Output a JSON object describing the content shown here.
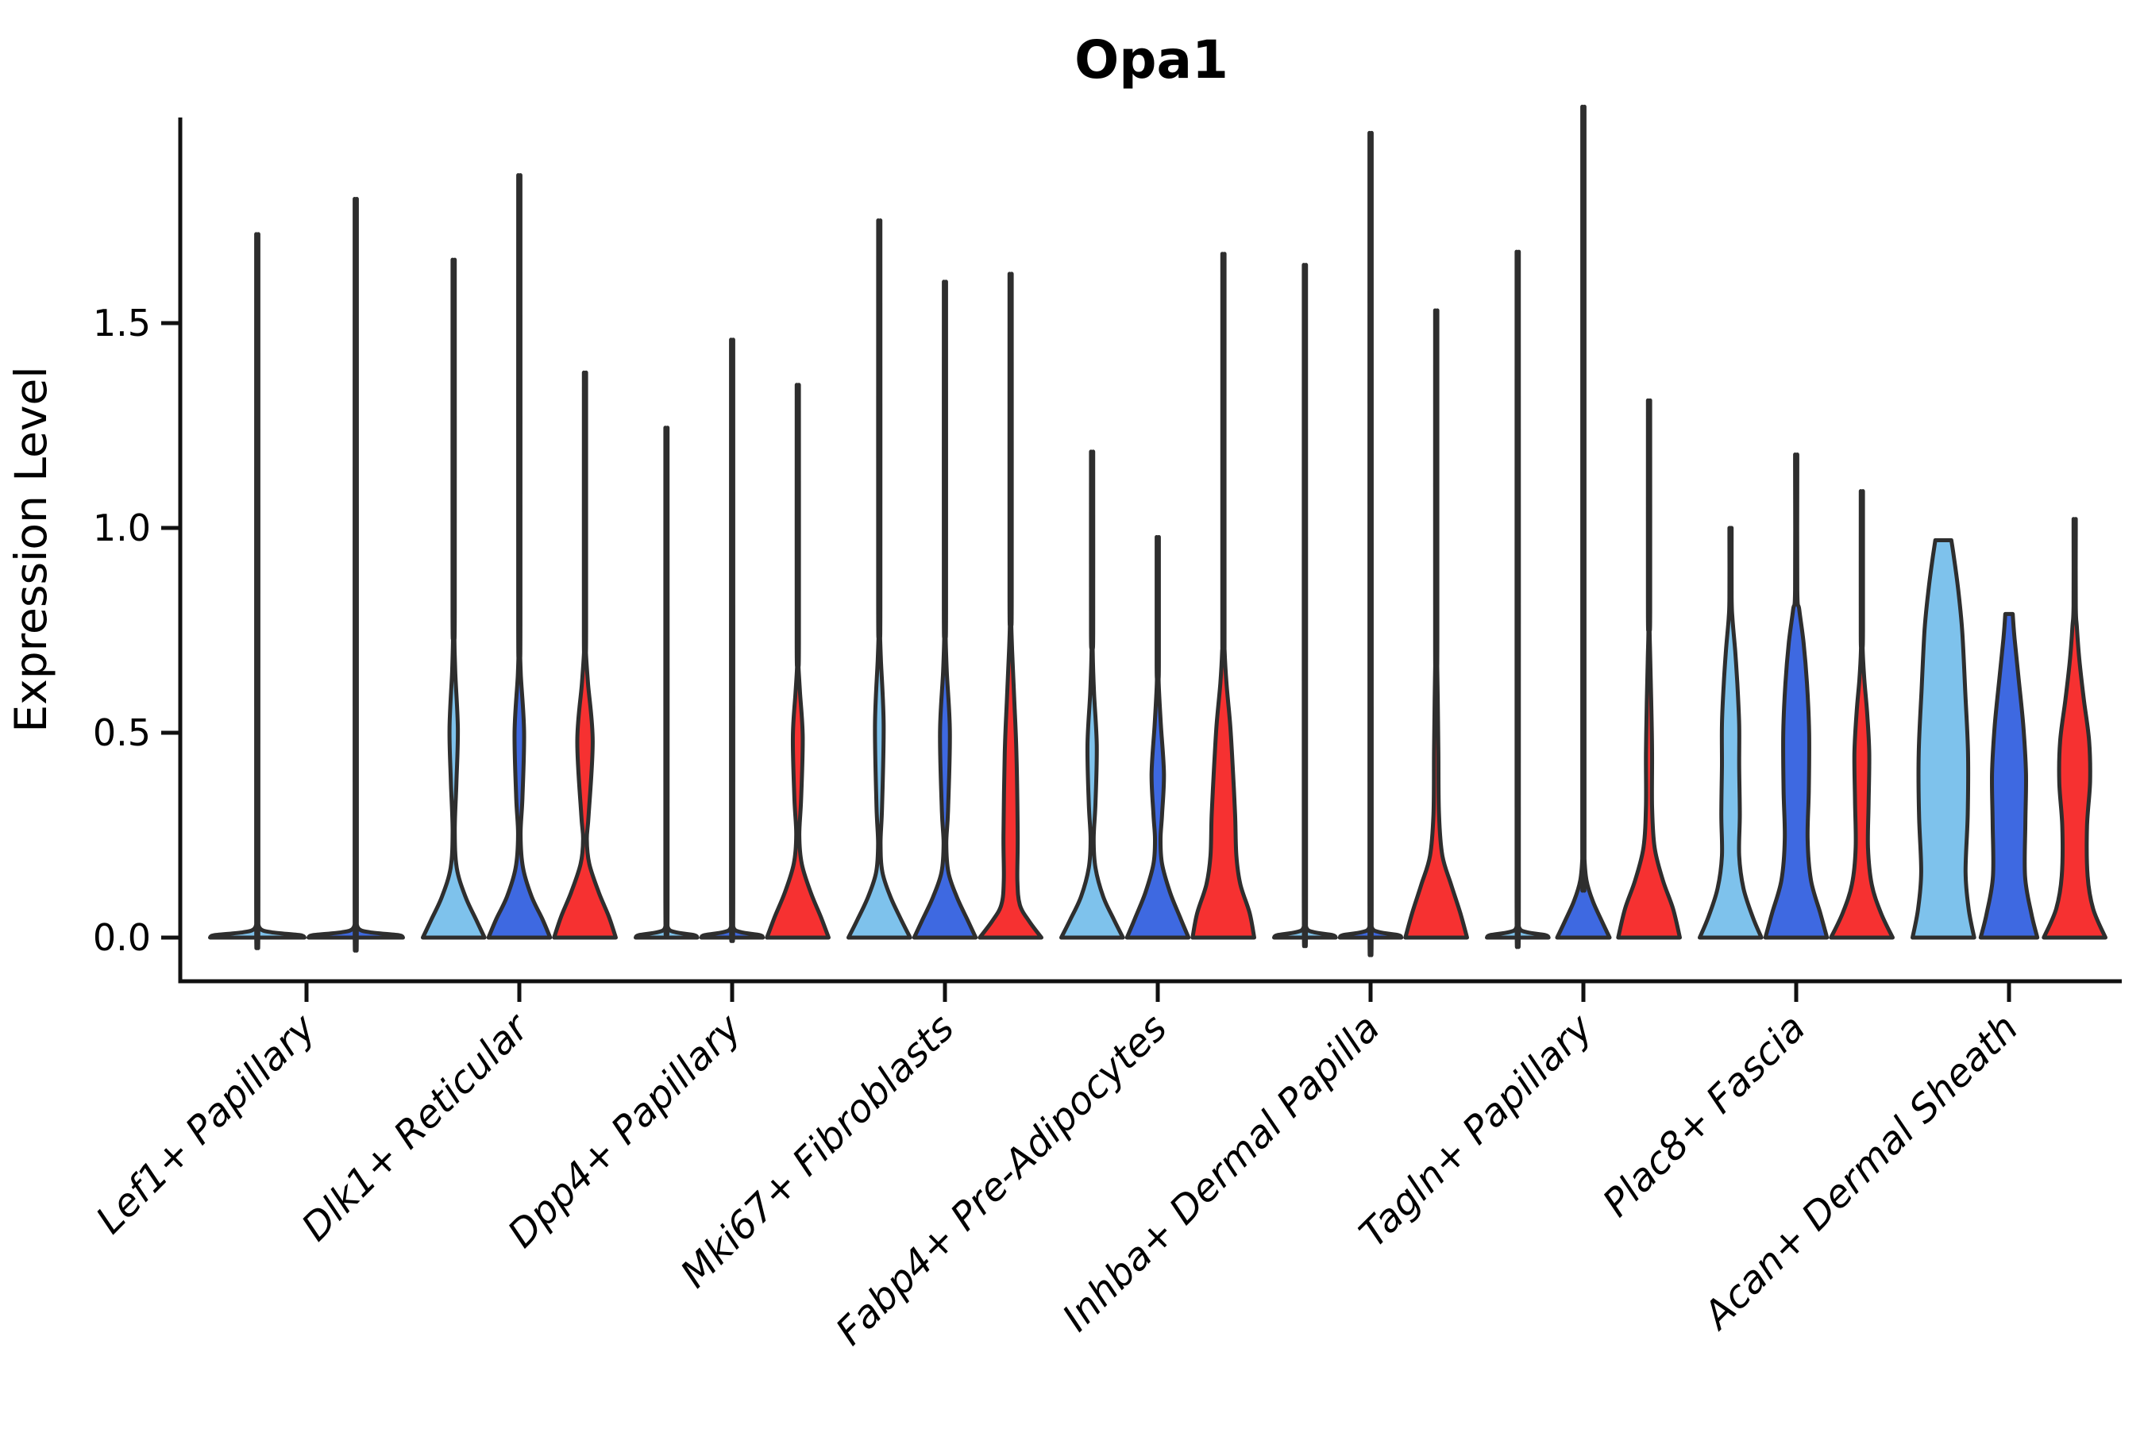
{
  "page": {
    "background": "#ffffff"
  },
  "chart_data": {
    "type": "violin",
    "title": "Opa1",
    "ylabel": "Expression Level",
    "xlabel": "",
    "yticks": [
      "0.0",
      "0.5",
      "1.0",
      "1.5"
    ],
    "ytick_values": [
      0,
      0.5,
      1.0,
      1.5
    ],
    "ylim": [
      0,
      2.0
    ],
    "grid": false,
    "legend": "none",
    "categories": [
      "Lef1+ Papillary",
      "Dlk1+ Reticular",
      "Dpp4+ Papillary",
      "Mki67+ Fibroblasts",
      "Fabp4+ Pre-Adipocytes",
      "Inhba+ Dermal Papilla",
      "Tagln+ Papillary",
      "Plac8+ Fascia",
      "Acan+ Dermal Sheath"
    ],
    "palette": {
      "lightblue": "#7EC2EC",
      "darkblue": "#3E69E1",
      "red": "#F63131",
      "outline": "#2E2E2E",
      "axis": "#111111",
      "text": "#000000"
    },
    "series_order": [
      "lightblue",
      "darkblue",
      "red"
    ],
    "violins": [
      {
        "category": "Lef1+ Papillary",
        "cat": 0,
        "slots": 2,
        "slot": 0,
        "color": "lightblue",
        "shape": "flat-spike",
        "peak": 1.62,
        "profile": [
          [
            0,
            1
          ],
          [
            0.006,
            0.9
          ],
          [
            0.013,
            0.3
          ],
          [
            0.022,
            0.06
          ],
          [
            0.05,
            0.015
          ]
        ]
      },
      {
        "category": "Lef1+ Papillary",
        "cat": 0,
        "slots": 2,
        "slot": 1,
        "color": "darkblue",
        "shape": "flat-spike",
        "peak": 1.7,
        "profile": [
          [
            0,
            1
          ],
          [
            0.006,
            0.9
          ],
          [
            0.013,
            0.3
          ],
          [
            0.022,
            0.06
          ],
          [
            0.05,
            0.015
          ]
        ]
      },
      {
        "category": "Dlk1+ Reticular",
        "cat": 1,
        "slots": 3,
        "slot": 0,
        "color": "lightblue",
        "shape": "mound-bulge-spike",
        "peak": 1.61,
        "profile": [
          [
            0,
            1
          ],
          [
            0.045,
            0.72
          ],
          [
            0.1,
            0.38
          ],
          [
            0.17,
            0.1
          ],
          [
            0.26,
            0.035
          ],
          [
            0.38,
            0.09
          ],
          [
            0.51,
            0.135
          ],
          [
            0.65,
            0.05
          ],
          [
            0.75,
            0.02
          ]
        ]
      },
      {
        "category": "Dlk1+ Reticular",
        "cat": 1,
        "slots": 3,
        "slot": 1,
        "color": "darkblue",
        "shape": "mound-bulge-spike",
        "peak": 1.8,
        "profile": [
          [
            0,
            1
          ],
          [
            0.045,
            0.75
          ],
          [
            0.1,
            0.4
          ],
          [
            0.17,
            0.12
          ],
          [
            0.25,
            0.04
          ],
          [
            0.34,
            0.1
          ],
          [
            0.5,
            0.155
          ],
          [
            0.64,
            0.05
          ],
          [
            0.72,
            0.02
          ]
        ]
      },
      {
        "category": "Dlk1+ Reticular",
        "cat": 1,
        "slots": 3,
        "slot": 2,
        "color": "red",
        "shape": "mound-bulge-spike",
        "peak": 1.35,
        "profile": [
          [
            0,
            1
          ],
          [
            0.05,
            0.78
          ],
          [
            0.11,
            0.45
          ],
          [
            0.18,
            0.14
          ],
          [
            0.24,
            0.06
          ],
          [
            0.3,
            0.12
          ],
          [
            0.48,
            0.25
          ],
          [
            0.62,
            0.1
          ],
          [
            0.7,
            0.03
          ]
        ]
      },
      {
        "category": "Dpp4+ Papillary",
        "cat": 2,
        "slots": 3,
        "slot": 0,
        "color": "lightblue",
        "shape": "flat-spike",
        "peak": 1.18,
        "profile": [
          [
            0,
            1
          ],
          [
            0.006,
            0.9
          ],
          [
            0.013,
            0.3
          ],
          [
            0.022,
            0.06
          ],
          [
            0.05,
            0.015
          ]
        ]
      },
      {
        "category": "Dpp4+ Papillary",
        "cat": 2,
        "slots": 3,
        "slot": 1,
        "color": "darkblue",
        "shape": "flat-spike",
        "peak": 1.38,
        "profile": [
          [
            0,
            1
          ],
          [
            0.006,
            0.9
          ],
          [
            0.013,
            0.3
          ],
          [
            0.022,
            0.06
          ],
          [
            0.05,
            0.015
          ]
        ]
      },
      {
        "category": "Dpp4+ Papillary",
        "cat": 2,
        "slots": 3,
        "slot": 2,
        "color": "red",
        "shape": "mound-bulge-spike",
        "peak": 1.32,
        "profile": [
          [
            0,
            1
          ],
          [
            0.05,
            0.75
          ],
          [
            0.11,
            0.42
          ],
          [
            0.18,
            0.13
          ],
          [
            0.25,
            0.05
          ],
          [
            0.34,
            0.11
          ],
          [
            0.49,
            0.16
          ],
          [
            0.6,
            0.07
          ],
          [
            0.67,
            0.02
          ]
        ]
      },
      {
        "category": "Mki67+ Fibroblasts",
        "cat": 3,
        "slots": 3,
        "slot": 0,
        "color": "lightblue",
        "shape": "mound-bulge-spike",
        "peak": 1.7,
        "profile": [
          [
            0,
            1
          ],
          [
            0.045,
            0.7
          ],
          [
            0.1,
            0.36
          ],
          [
            0.16,
            0.1
          ],
          [
            0.23,
            0.04
          ],
          [
            0.32,
            0.09
          ],
          [
            0.52,
            0.14
          ],
          [
            0.68,
            0.05
          ],
          [
            0.76,
            0.02
          ]
        ]
      },
      {
        "category": "Mki67+ Fibroblasts",
        "cat": 3,
        "slots": 3,
        "slot": 1,
        "color": "darkblue",
        "shape": "mound-bulge-spike",
        "peak": 1.56,
        "profile": [
          [
            0,
            1
          ],
          [
            0.045,
            0.72
          ],
          [
            0.1,
            0.38
          ],
          [
            0.16,
            0.11
          ],
          [
            0.23,
            0.045
          ],
          [
            0.31,
            0.1
          ],
          [
            0.5,
            0.16
          ],
          [
            0.65,
            0.06
          ],
          [
            0.75,
            0.02
          ]
        ]
      },
      {
        "category": "Mki67+ Fibroblasts",
        "cat": 3,
        "slots": 3,
        "slot": 2,
        "color": "red",
        "shape": "trumpet-spike",
        "peak": 1.58,
        "profile": [
          [
            0,
            1
          ],
          [
            0.04,
            0.6
          ],
          [
            0.08,
            0.3
          ],
          [
            0.14,
            0.22
          ],
          [
            0.25,
            0.23
          ],
          [
            0.45,
            0.19
          ],
          [
            0.58,
            0.12
          ],
          [
            0.7,
            0.05
          ],
          [
            0.78,
            0.02
          ]
        ]
      },
      {
        "category": "Fabp4+ Pre-Adipocytes",
        "cat": 4,
        "slots": 3,
        "slot": 0,
        "color": "lightblue",
        "shape": "mound-bulge-spike",
        "peak": 1.17,
        "profile": [
          [
            0,
            1
          ],
          [
            0.045,
            0.7
          ],
          [
            0.1,
            0.36
          ],
          [
            0.17,
            0.11
          ],
          [
            0.24,
            0.05
          ],
          [
            0.33,
            0.11
          ],
          [
            0.47,
            0.15
          ],
          [
            0.6,
            0.06
          ],
          [
            0.7,
            0.02
          ]
        ]
      },
      {
        "category": "Fabp4+ Pre-Adipocytes",
        "cat": 4,
        "slots": 3,
        "slot": 1,
        "color": "darkblue",
        "shape": "mound-bulge-spike",
        "peak": 0.97,
        "profile": [
          [
            0,
            1
          ],
          [
            0.05,
            0.72
          ],
          [
            0.11,
            0.4
          ],
          [
            0.18,
            0.14
          ],
          [
            0.24,
            0.09
          ],
          [
            0.3,
            0.14
          ],
          [
            0.4,
            0.2
          ],
          [
            0.52,
            0.1
          ],
          [
            0.62,
            0.03
          ]
        ]
      },
      {
        "category": "Fabp4+ Pre-Adipocytes",
        "cat": 4,
        "slots": 3,
        "slot": 2,
        "color": "red",
        "shape": "wide-trumpet-spike",
        "peak": 1.62,
        "profile": [
          [
            0,
            1
          ],
          [
            0.06,
            0.85
          ],
          [
            0.13,
            0.55
          ],
          [
            0.2,
            0.42
          ],
          [
            0.3,
            0.38
          ],
          [
            0.42,
            0.3
          ],
          [
            0.52,
            0.22
          ],
          [
            0.62,
            0.1
          ],
          [
            0.7,
            0.04
          ]
        ]
      },
      {
        "category": "Inhba+ Dermal Papilla",
        "cat": 5,
        "slots": 3,
        "slot": 0,
        "color": "lightblue",
        "shape": "flat-spike",
        "peak": 1.55,
        "profile": [
          [
            0,
            1
          ],
          [
            0.006,
            0.9
          ],
          [
            0.013,
            0.3
          ],
          [
            0.022,
            0.06
          ],
          [
            0.05,
            0.015
          ]
        ]
      },
      {
        "category": "Inhba+ Dermal Papilla",
        "cat": 5,
        "slots": 3,
        "slot": 1,
        "color": "darkblue",
        "shape": "flat-spike",
        "peak": 1.85,
        "profile": [
          [
            0,
            1
          ],
          [
            0.006,
            0.9
          ],
          [
            0.013,
            0.3
          ],
          [
            0.022,
            0.06
          ],
          [
            0.05,
            0.015
          ]
        ]
      },
      {
        "category": "Inhba+ Dermal Papilla",
        "cat": 5,
        "slots": 3,
        "slot": 2,
        "color": "red",
        "shape": "mound-spike",
        "peak": 1.49,
        "profile": [
          [
            0,
            1
          ],
          [
            0.06,
            0.78
          ],
          [
            0.13,
            0.48
          ],
          [
            0.2,
            0.2
          ],
          [
            0.3,
            0.09
          ],
          [
            0.45,
            0.07
          ],
          [
            0.58,
            0.05
          ],
          [
            0.68,
            0.03
          ]
        ]
      },
      {
        "category": "Tagln+ Papillary",
        "cat": 6,
        "slots": 3,
        "slot": 0,
        "color": "lightblue",
        "shape": "flat-spike",
        "peak": 1.58,
        "profile": [
          [
            0,
            1
          ],
          [
            0.006,
            0.9
          ],
          [
            0.013,
            0.3
          ],
          [
            0.022,
            0.06
          ],
          [
            0.05,
            0.015
          ]
        ]
      },
      {
        "category": "Tagln+ Papillary",
        "cat": 6,
        "slots": 3,
        "slot": 1,
        "color": "darkblue",
        "shape": "small-mound-spike",
        "peak": 1.92,
        "profile": [
          [
            0,
            0.85
          ],
          [
            0.04,
            0.6
          ],
          [
            0.09,
            0.3
          ],
          [
            0.14,
            0.1
          ],
          [
            0.2,
            0.03
          ]
        ]
      },
      {
        "category": "Tagln+ Papillary",
        "cat": 6,
        "slots": 3,
        "slot": 2,
        "color": "red",
        "shape": "mound-column-spike",
        "peak": 1.29,
        "profile": [
          [
            0,
            1
          ],
          [
            0.07,
            0.78
          ],
          [
            0.14,
            0.45
          ],
          [
            0.22,
            0.18
          ],
          [
            0.32,
            0.1
          ],
          [
            0.45,
            0.1
          ],
          [
            0.58,
            0.07
          ],
          [
            0.68,
            0.04
          ],
          [
            0.75,
            0.02
          ]
        ]
      },
      {
        "category": "Plac8+ Fascia",
        "cat": 7,
        "slots": 3,
        "slot": 0,
        "color": "lightblue",
        "shape": "column-spike",
        "peak": 1.0,
        "profile": [
          [
            0,
            1
          ],
          [
            0.05,
            0.72
          ],
          [
            0.12,
            0.42
          ],
          [
            0.2,
            0.28
          ],
          [
            0.3,
            0.3
          ],
          [
            0.42,
            0.28
          ],
          [
            0.52,
            0.28
          ],
          [
            0.62,
            0.22
          ],
          [
            0.7,
            0.15
          ],
          [
            0.78,
            0.06
          ]
        ]
      },
      {
        "category": "Plac8+ Fascia",
        "cat": 7,
        "slots": 3,
        "slot": 1,
        "color": "darkblue",
        "shape": "column-spike",
        "peak": 1.17,
        "profile": [
          [
            0,
            1
          ],
          [
            0.06,
            0.78
          ],
          [
            0.14,
            0.48
          ],
          [
            0.24,
            0.37
          ],
          [
            0.36,
            0.41
          ],
          [
            0.5,
            0.42
          ],
          [
            0.62,
            0.35
          ],
          [
            0.72,
            0.24
          ],
          [
            0.8,
            0.1
          ]
        ]
      },
      {
        "category": "Plac8+ Fascia",
        "cat": 7,
        "slots": 3,
        "slot": 2,
        "color": "red",
        "shape": "column-spike",
        "peak": 1.08,
        "profile": [
          [
            0,
            1
          ],
          [
            0.06,
            0.62
          ],
          [
            0.13,
            0.32
          ],
          [
            0.22,
            0.2
          ],
          [
            0.33,
            0.22
          ],
          [
            0.45,
            0.24
          ],
          [
            0.55,
            0.17
          ],
          [
            0.63,
            0.08
          ],
          [
            0.7,
            0.03
          ]
        ]
      },
      {
        "category": "Acan+ Dermal Sheath",
        "cat": 8,
        "slots": 3,
        "slot": 0,
        "color": "lightblue",
        "shape": "wide-column-cap",
        "peak": 0.97,
        "profile": [
          [
            0,
            1
          ],
          [
            0.07,
            0.82
          ],
          [
            0.16,
            0.72
          ],
          [
            0.3,
            0.79
          ],
          [
            0.45,
            0.8
          ],
          [
            0.6,
            0.71
          ],
          [
            0.75,
            0.61
          ],
          [
            0.85,
            0.48
          ],
          [
            0.93,
            0.34
          ],
          [
            0.97,
            0.26
          ]
        ]
      },
      {
        "category": "Acan+ Dermal Sheath",
        "cat": 8,
        "slots": 3,
        "slot": 1,
        "color": "darkblue",
        "shape": "column-cap",
        "peak": 0.79,
        "profile": [
          [
            0,
            0.92
          ],
          [
            0.06,
            0.72
          ],
          [
            0.15,
            0.52
          ],
          [
            0.28,
            0.53
          ],
          [
            0.4,
            0.55
          ],
          [
            0.52,
            0.46
          ],
          [
            0.64,
            0.3
          ],
          [
            0.73,
            0.18
          ],
          [
            0.79,
            0.12
          ]
        ]
      },
      {
        "category": "Acan+ Dermal Sheath",
        "cat": 8,
        "slots": 3,
        "slot": 2,
        "color": "red",
        "shape": "column-spike",
        "peak": 1.02,
        "profile": [
          [
            0,
            1
          ],
          [
            0.07,
            0.6
          ],
          [
            0.15,
            0.42
          ],
          [
            0.27,
            0.4
          ],
          [
            0.38,
            0.5
          ],
          [
            0.48,
            0.47
          ],
          [
            0.58,
            0.3
          ],
          [
            0.68,
            0.15
          ],
          [
            0.76,
            0.07
          ]
        ]
      }
    ]
  }
}
